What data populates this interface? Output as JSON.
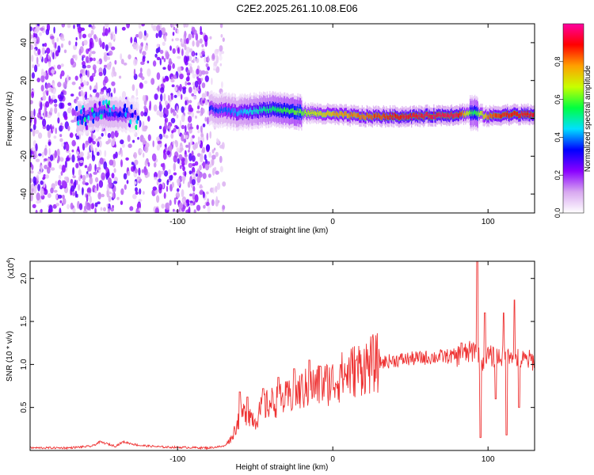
{
  "title": "C2E2.2025.261.10.08.E06",
  "chart_data": [
    {
      "type": "heatmap",
      "xlabel": "Height of straight line (km)",
      "ylabel": "Frequency (Hz)",
      "xlim": [
        -195,
        130
      ],
      "ylim": [
        -50,
        50
      ],
      "x_ticks": [
        -100,
        0,
        100
      ],
      "y_ticks": [
        -40,
        -20,
        0,
        20,
        40
      ],
      "colorbar": {
        "label": "Normalized spectral amplitude",
        "range": [
          0,
          1
        ],
        "ticks": [
          "0.0",
          "0.2",
          "0.4",
          "0.6",
          "0.8"
        ],
        "tick_values": [
          0,
          0.2,
          0.4,
          0.6,
          0.8
        ],
        "colors": [
          "#ffffff",
          "#d8a8f0",
          "#8a00ff",
          "#0000ff",
          "#00e0ff",
          "#00ff40",
          "#c8ff00",
          "#ffa000",
          "#ff0000",
          "#ff00a0"
        ]
      },
      "noise_regions": [
        {
          "x_range": [
            -195,
            -80
          ],
          "freq_range": [
            -50,
            50
          ],
          "amplitude": 0.15
        },
        {
          "x_range": [
            -80,
            -70
          ],
          "freq_range": [
            -50,
            50
          ],
          "amplitude": 0.08
        }
      ],
      "signal_band": {
        "x": [
          -165,
          -150,
          -135,
          -125,
          -80,
          -60,
          -40,
          -20,
          0,
          20,
          50,
          80,
          90,
          100,
          110,
          130
        ],
        "freq_center": [
          0,
          3,
          2,
          1,
          5,
          3,
          5,
          3,
          2,
          1,
          1,
          2,
          3,
          1,
          2,
          2
        ],
        "amplitude": [
          0.3,
          0.35,
          0.3,
          0.1,
          0.3,
          0.4,
          0.5,
          0.6,
          0.75,
          0.8,
          0.9,
          0.92,
          0.5,
          0.8,
          0.85,
          0.9
        ]
      }
    },
    {
      "type": "line",
      "xlabel": "Height of straight line (km)",
      "ylabel": "SNR (10 * v/v)",
      "y_exponent_label": "(x10",
      "y_exponent_power": "4",
      "y_exponent_close": ")",
      "xlim": [
        -195,
        130
      ],
      "ylim": [
        0,
        2.2
      ],
      "x_ticks": [
        -100,
        0,
        100
      ],
      "y_ticks": [
        "0.5",
        "1.0",
        "1.5",
        "2.0"
      ],
      "y_tick_values": [
        0.5,
        1.0,
        1.5,
        2.0
      ],
      "series": [
        {
          "name": "SNR",
          "color": "#ee3333",
          "x": [
            -195,
            -170,
            -155,
            -150,
            -140,
            -135,
            -125,
            -110,
            -80,
            -70,
            -65,
            -60,
            -55,
            -50,
            -45,
            -40,
            -30,
            -20,
            -10,
            0,
            10,
            20,
            30,
            40,
            60,
            80,
            85,
            90,
            93,
            95,
            100,
            105,
            110,
            115,
            120,
            125,
            130
          ],
          "y": [
            0.03,
            0.03,
            0.05,
            0.1,
            0.05,
            0.1,
            0.06,
            0.04,
            0.03,
            0.05,
            0.15,
            0.4,
            0.45,
            0.35,
            0.5,
            0.55,
            0.6,
            0.7,
            0.75,
            0.8,
            0.9,
            0.98,
            1.02,
            1.05,
            1.08,
            1.1,
            1.12,
            1.15,
            1.25,
            1.0,
            1.1,
            1.08,
            1.1,
            1.15,
            1.05,
            1.05,
            1.05
          ],
          "spikes": [
            {
              "x": -60,
              "y": 0.68
            },
            {
              "x": -55,
              "y": 0.62
            },
            {
              "x": -45,
              "y": 0.72
            },
            {
              "x": -35,
              "y": 0.85
            },
            {
              "x": -25,
              "y": 0.95
            },
            {
              "x": -15,
              "y": 1.05
            },
            {
              "x": -8,
              "y": 0.98
            },
            {
              "x": 5,
              "y": 1.0
            },
            {
              "x": 15,
              "y": 1.05
            },
            {
              "x": 83,
              "y": 1.25
            },
            {
              "x": 93,
              "y": 2.2
            },
            {
              "x": 95,
              "y": 0.15
            },
            {
              "x": 98,
              "y": 1.6
            },
            {
              "x": 105,
              "y": 0.6
            },
            {
              "x": 110,
              "y": 1.6
            },
            {
              "x": 112,
              "y": 0.18
            },
            {
              "x": 117,
              "y": 1.75
            },
            {
              "x": 120,
              "y": 0.5
            }
          ]
        }
      ]
    }
  ]
}
